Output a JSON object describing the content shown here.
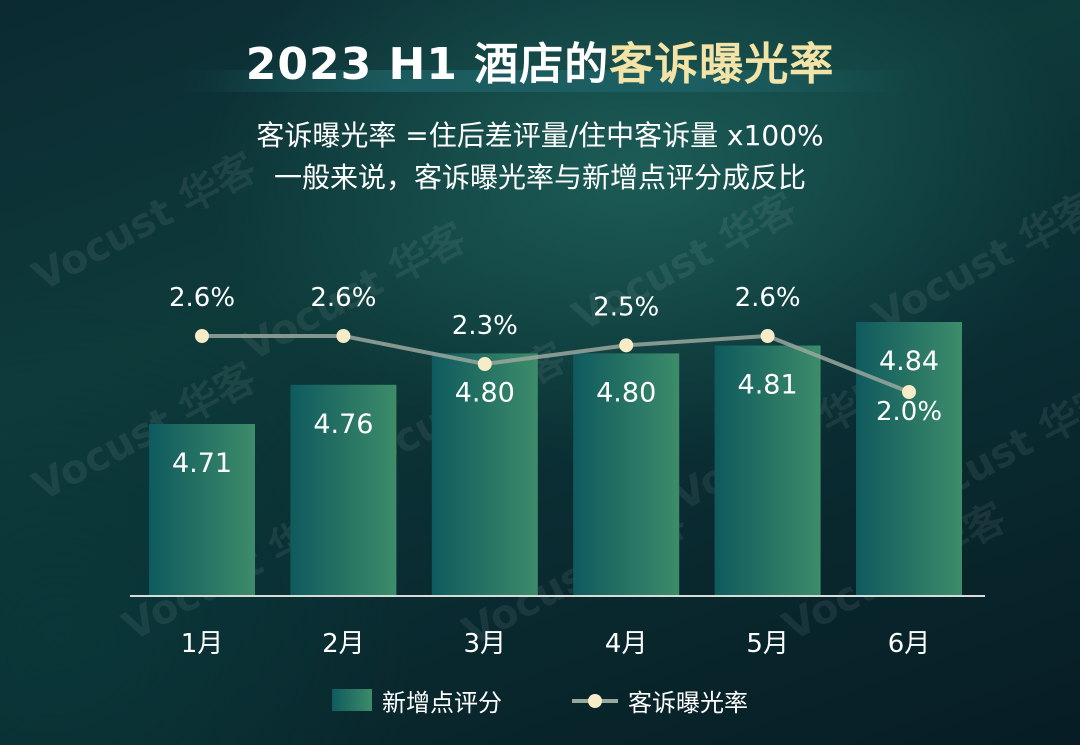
{
  "title_prefix": "2023 H1 酒店的",
  "title_highlight": "客诉曝光率",
  "subtitle_lines": [
    "客诉曝光率 =住后差评量/住中客诉量 x100%",
    "一般来说，客诉曝光率与新增点评分成反比"
  ],
  "watermark_text": "Vocust 华客",
  "colors": {
    "bar_dark": "#0f5a5e",
    "bar_light": "#3d8c6a",
    "line": "#9aa79d",
    "point": "#f6ecc8",
    "title_highlight": "#f4e3a6"
  },
  "chart_data": {
    "type": "bar",
    "categories": [
      "1月",
      "2月",
      "3月",
      "4月",
      "5月",
      "6月"
    ],
    "series": [
      {
        "name": "新增点评分",
        "type": "bar",
        "values": [
          4.71,
          4.76,
          4.8,
          4.8,
          4.81,
          4.84
        ],
        "labels": [
          "4.71",
          "4.76",
          "4.80",
          "4.80",
          "4.81",
          "4.84"
        ]
      },
      {
        "name": "客诉曝光率",
        "type": "line",
        "values": [
          2.6,
          2.6,
          2.3,
          2.5,
          2.6,
          2.0
        ],
        "labels": [
          "2.6%",
          "2.6%",
          "2.3%",
          "2.5%",
          "2.6%",
          "2.0%"
        ]
      }
    ],
    "legend": [
      "新增点评分",
      "客诉曝光率"
    ],
    "legend_position": "bottom",
    "grid": false
  }
}
